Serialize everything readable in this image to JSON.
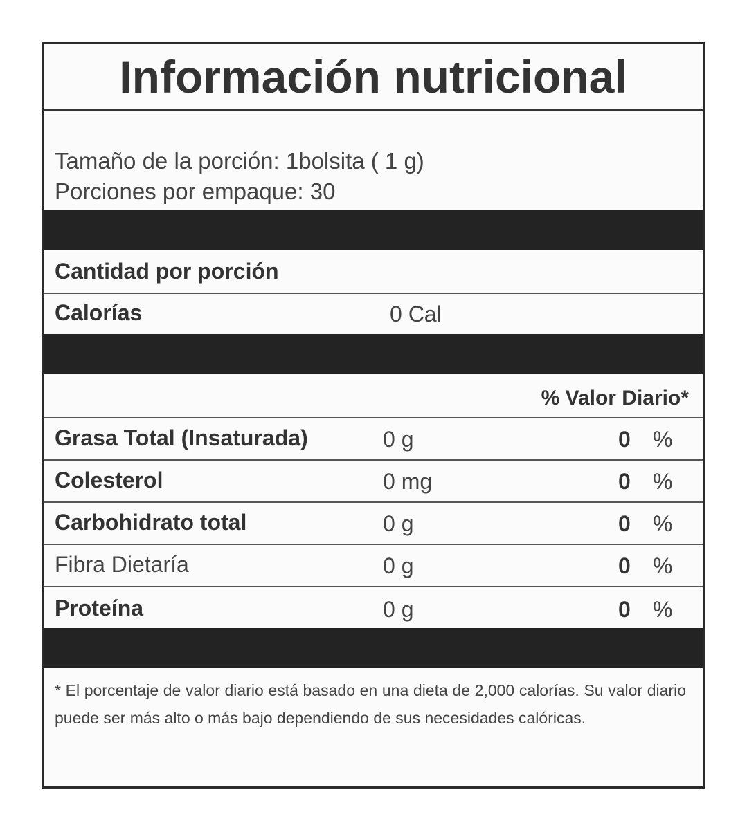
{
  "title": "Información nutricional",
  "serving_size": "Tamaño de la porción: 1bolsita ( 1 g)",
  "servings_per_container": "Porciones por empaque: 30",
  "amount_per_serving": "Cantidad por porción",
  "calories": {
    "label": "Calorías",
    "value": "0 Cal"
  },
  "daily_value_header": "% Valor Diario*",
  "nutrients": [
    {
      "name": "Grasa Total (Insaturada)",
      "amount": "0  g",
      "percent": "0",
      "unit": "%",
      "bold": true
    },
    {
      "name": "Colesterol",
      "amount": "0 mg",
      "percent": "0",
      "unit": "%",
      "bold": true
    },
    {
      "name": "Carbohidrato total",
      "amount": "0  g",
      "percent": "0",
      "unit": "%",
      "bold": true
    },
    {
      "name": "Fibra Dietaría",
      "amount": "0 g",
      "percent": "0",
      "unit": "%",
      "bold": false
    },
    {
      "name": "Proteína",
      "amount": "0 g",
      "percent": "0",
      "unit": "%",
      "bold": true
    }
  ],
  "footnote": "* El porcentaje de valor diario está basado en una dieta de 2,000 calorías. Su valor diario puede ser más alto o más bajo dependiendo de sus necesidades calóricas."
}
